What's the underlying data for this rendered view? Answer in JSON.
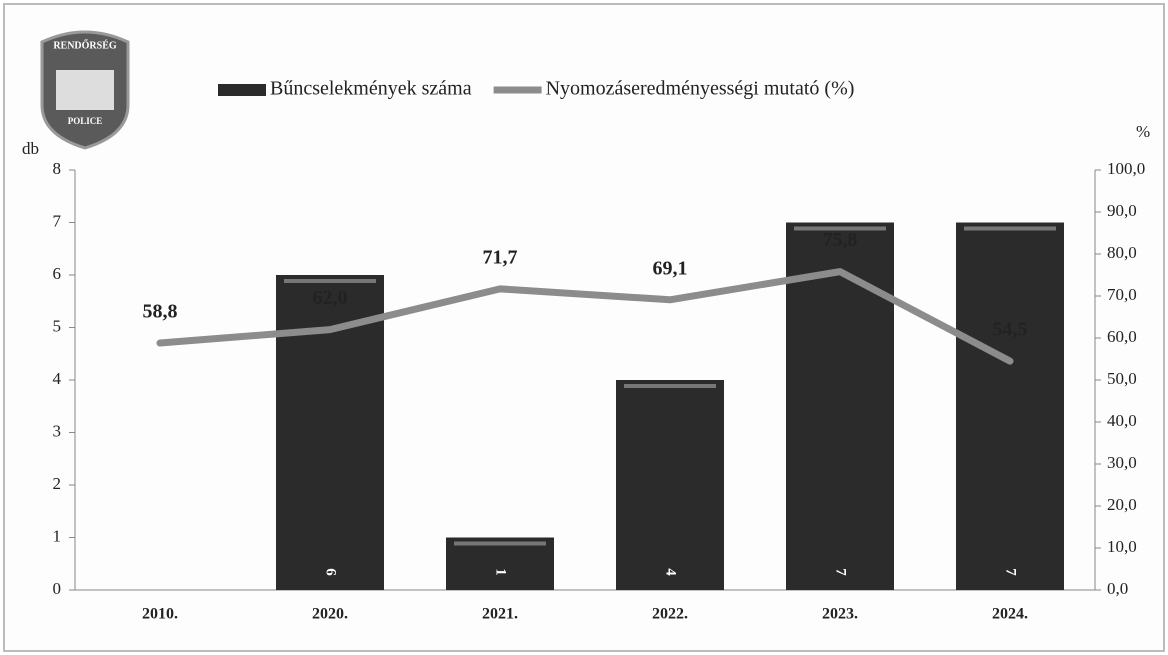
{
  "chart_data": {
    "type": "combo",
    "logo": {
      "top": "RENDŐRSÉG",
      "bottom": "POLICE"
    },
    "y_label": "db",
    "y2_label": "%",
    "categories": [
      "2010.",
      "2020.",
      "2021.",
      "2022.",
      "2023.",
      "2024."
    ],
    "series": [
      {
        "name": "Bűncselekmények száma",
        "type": "bar",
        "color": "#2b2b2b",
        "values": [
          null,
          6,
          1,
          4,
          7,
          7
        ]
      },
      {
        "name": "Nyomozáseredményességi mutató (%)",
        "type": "line",
        "axis": "y2",
        "color": "#8c8c8c",
        "values": [
          58.8,
          62.0,
          71.7,
          69.1,
          75.8,
          54.5
        ],
        "value_labels": [
          "58,8",
          "62,0",
          "71,7",
          "69,1",
          "75,8",
          "54,5"
        ]
      }
    ],
    "ylim": [
      0,
      8
    ],
    "yticks": [
      0,
      1,
      2,
      3,
      4,
      5,
      6,
      7,
      8
    ],
    "y2lim": [
      0,
      100
    ],
    "y2ticks": [
      {
        "value": 0,
        "label": "0,0"
      },
      {
        "value": 10,
        "label": "10,0"
      },
      {
        "value": 20,
        "label": "20,0"
      },
      {
        "value": 30,
        "label": "30,0"
      },
      {
        "value": 40,
        "label": "40,0"
      },
      {
        "value": 50,
        "label": "50,0"
      },
      {
        "value": 60,
        "label": "60,0"
      },
      {
        "value": 70,
        "label": "70,0"
      },
      {
        "value": 80,
        "label": "80,0"
      },
      {
        "value": 90,
        "label": "90,0"
      },
      {
        "value": 100,
        "label": "100,0"
      }
    ],
    "legend": "top"
  }
}
